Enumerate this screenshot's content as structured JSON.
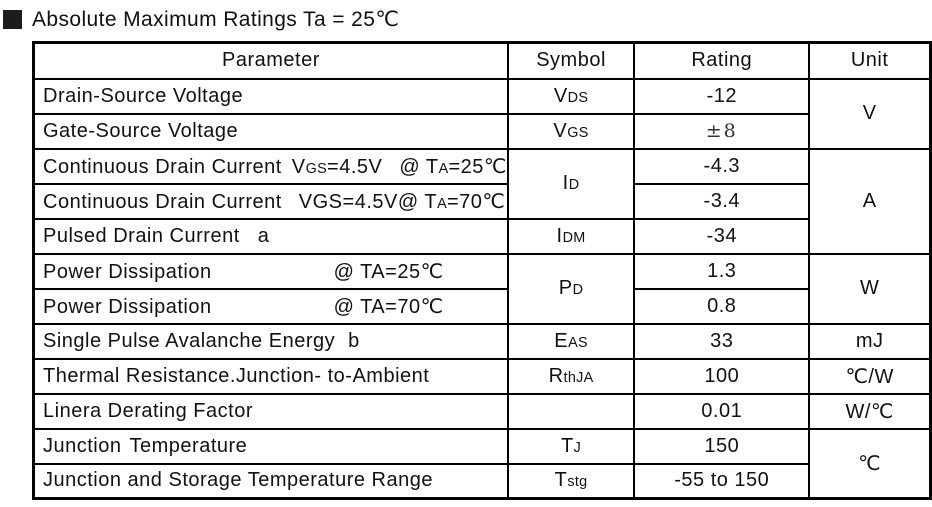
{
  "title": {
    "bullet_icon": "filled-square-icon",
    "text": "Absolute Maximum Ratings Ta = 25℃"
  },
  "colors": {
    "text": "#111111",
    "border": "#000000",
    "background": "#ffffff"
  },
  "table": {
    "headers": [
      "Parameter",
      "Symbol",
      "Rating",
      "Unit"
    ],
    "rows": [
      {
        "parameter": [
          {
            "t": "Drain-Source Voltage"
          }
        ],
        "symbol": [
          {
            "t": "V"
          },
          {
            "t": "DS",
            "small": true
          }
        ],
        "rating": "-12",
        "unit": "V"
      },
      {
        "parameter": [
          {
            "t": "Gate-Source Voltage"
          }
        ],
        "symbol": [
          {
            "t": "V"
          },
          {
            "t": "GS",
            "small": true
          }
        ],
        "rating": "±8"
      },
      {
        "parameter": [
          {
            "t": "Continuous Drain Current"
          },
          {
            "t": "V",
            "gap": 10
          },
          {
            "t": "GS",
            "small": true
          },
          {
            "t": "=4.5V"
          },
          {
            "t": "@ T",
            "gap": 17
          },
          {
            "t": "A",
            "small": true
          },
          {
            "t": "=25℃"
          }
        ],
        "symbol": [
          {
            "t": "I"
          },
          {
            "t": "D",
            "small": true
          }
        ],
        "rating": "-4.3",
        "unit": "A"
      },
      {
        "parameter": [
          {
            "t": "Continuous Drain Current"
          },
          {
            "t": "VGS=4.5V@ T",
            "gap": 17
          },
          {
            "t": "A",
            "small": true
          },
          {
            "t": "=70℃"
          }
        ],
        "rating": "-3.4"
      },
      {
        "parameter": [
          {
            "t": "Pulsed Drain Current"
          },
          {
            "t": "a",
            "gap": 18
          }
        ],
        "symbol": [
          {
            "t": "I"
          },
          {
            "t": "DM",
            "small": true
          }
        ],
        "rating": "-34"
      },
      {
        "parameter": [
          {
            "t": "Power Dissipation"
          },
          {
            "t": "@ TA=25℃",
            "gap": 122
          }
        ],
        "symbol": [
          {
            "t": "P"
          },
          {
            "t": "D",
            "small": true
          }
        ],
        "rating": "1.3",
        "unit": "W"
      },
      {
        "parameter": [
          {
            "t": "Power Dissipation"
          },
          {
            "t": "@ TA=70℃",
            "gap": 122
          }
        ],
        "rating": "0.8"
      },
      {
        "parameter": [
          {
            "t": "Single Pulse Avalanche Energy"
          },
          {
            "t": "b",
            "gap": 13
          }
        ],
        "symbol": [
          {
            "t": "E"
          },
          {
            "t": "AS",
            "small": true
          }
        ],
        "rating": "33",
        "unit": "mJ"
      },
      {
        "parameter": [
          {
            "t": "Thermal Resistance.Junction- to-Ambient"
          }
        ],
        "symbol": [
          {
            "t": "R"
          },
          {
            "t": "thJA",
            "small": true
          }
        ],
        "rating": "100",
        "unit": "℃/W"
      },
      {
        "parameter": [
          {
            "t": "Linera Derating Factor"
          }
        ],
        "symbol": [],
        "rating": "0.01",
        "unit": "W/℃"
      },
      {
        "parameter": [
          {
            "t": "Junction"
          },
          {
            "t": "Temperature",
            "gap": 8
          }
        ],
        "symbol": [
          {
            "t": "T"
          },
          {
            "t": "J",
            "small": true
          }
        ],
        "rating": "150",
        "unit": "℃"
      },
      {
        "parameter": [
          {
            "t": "Junction and Storage Temperature Range"
          }
        ],
        "symbol": [
          {
            "t": "T"
          },
          {
            "t": "stg",
            "small": true
          }
        ],
        "rating": "-55 to 150"
      }
    ]
  }
}
